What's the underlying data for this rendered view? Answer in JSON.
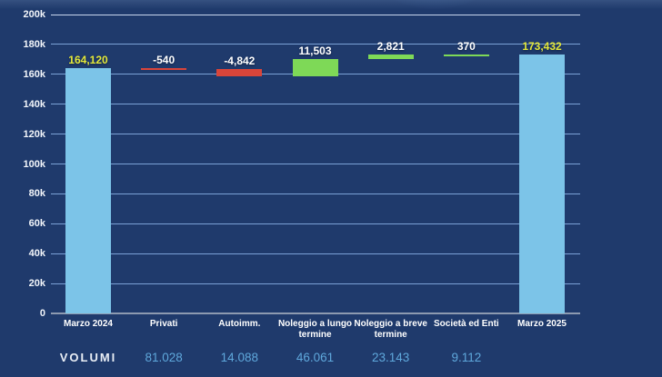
{
  "colors": {
    "background": "#1f3a6c",
    "bar_total": "#7cc4e8",
    "bar_decrease": "#d9453a",
    "bar_increase": "#7ed957",
    "label_total": "#e4e839",
    "label_change": "#ffffff",
    "gridline": "#7ba1d6",
    "gridline_top": "#c8d7ee",
    "axis_line": "#8d9ab0",
    "tick_label": "#f2f5fa",
    "category_label": "#ffffff",
    "volumes_label_color": "#e9eef5",
    "volumes_value_color": "#5fa8dc"
  },
  "chart_data": {
    "type": "bar",
    "subtype": "waterfall",
    "title": "",
    "y_axis": {
      "min": 0,
      "max": 200000,
      "tick_step": 20000,
      "tick_labels": [
        "0",
        "20k",
        "40k",
        "60k",
        "80k",
        "100k",
        "120k",
        "140k",
        "160k",
        "180k",
        "200k"
      ],
      "grid": true
    },
    "legend": "none",
    "steps": [
      {
        "category": "Marzo 2024",
        "kind": "total",
        "value": 164120,
        "label": "164,120",
        "volume": ""
      },
      {
        "category": "Privati",
        "kind": "decrease",
        "value": -540,
        "label": "-540",
        "volume": "81.028"
      },
      {
        "category": "Autoimm.",
        "kind": "decrease",
        "value": -4842,
        "label": "-4,842",
        "volume": "14.088"
      },
      {
        "category": "Noleggio a lungo termine",
        "kind": "increase",
        "value": 11503,
        "label": "11,503",
        "volume": "46.061"
      },
      {
        "category": "Noleggio a breve termine",
        "kind": "increase",
        "value": 2821,
        "label": "2,821",
        "volume": "23.143"
      },
      {
        "category": "Società ed Enti",
        "kind": "increase",
        "value": 370,
        "label": "370",
        "volume": "9.112"
      },
      {
        "category": "Marzo 2025",
        "kind": "total",
        "value": 173432,
        "label": "173,432",
        "volume": ""
      }
    ],
    "running_totals": [
      164120,
      163580,
      158738,
      170241,
      173062,
      173432,
      173432
    ],
    "volumes_row": {
      "label": "VOLUMI"
    }
  }
}
